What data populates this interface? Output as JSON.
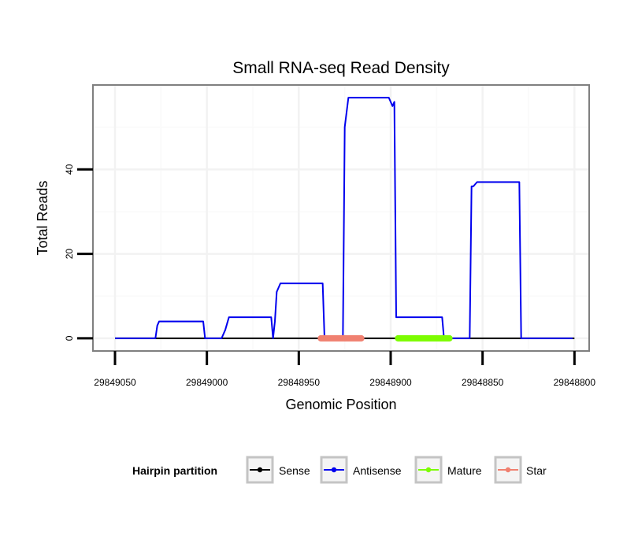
{
  "chart_data": {
    "type": "line",
    "title": "Small RNA-seq Read Density",
    "xlabel": "Genomic Position",
    "ylabel": "Total Reads",
    "x_reversed": true,
    "xlim": [
      29849062,
      29848792
    ],
    "ylim": [
      -3,
      60
    ],
    "x_ticks": [
      29849050,
      29849000,
      29848950,
      29848900,
      29848850,
      29848800
    ],
    "y_ticks": [
      0,
      20,
      40
    ],
    "grid": true,
    "legend": {
      "position": "bottom",
      "title": "Hairpin partition",
      "entries": [
        "Sense",
        "Antisense",
        "Mature",
        "Star"
      ]
    },
    "series": [
      {
        "name": "Antisense",
        "color": "#0000ee",
        "points": [
          [
            29849050,
            0
          ],
          [
            29849028,
            0
          ],
          [
            29849027,
            3
          ],
          [
            29849026,
            4
          ],
          [
            29849002,
            4
          ],
          [
            29849001,
            0
          ],
          [
            29848992,
            0
          ],
          [
            29848990,
            2
          ],
          [
            29848988,
            5
          ],
          [
            29848965,
            5
          ],
          [
            29848964,
            0
          ],
          [
            29848963,
            4
          ],
          [
            29848962,
            11
          ],
          [
            29848960,
            13
          ],
          [
            29848937,
            13
          ],
          [
            29848936,
            0
          ],
          [
            29848926,
            0
          ],
          [
            29848925,
            50
          ],
          [
            29848923,
            57
          ],
          [
            29848901,
            57
          ],
          [
            29848899,
            55
          ],
          [
            29848898,
            56
          ],
          [
            29848897,
            5
          ],
          [
            29848872,
            5
          ],
          [
            29848871,
            0
          ],
          [
            29848857,
            0
          ],
          [
            29848856,
            36
          ],
          [
            29848855,
            36
          ],
          [
            29848853,
            37
          ],
          [
            29848830,
            37
          ],
          [
            29848829,
            0
          ],
          [
            29848801,
            0
          ]
        ]
      },
      {
        "name": "Sense",
        "color": "#000000",
        "points": [
          [
            29849050,
            0
          ],
          [
            29848800,
            0
          ]
        ]
      },
      {
        "name": "Star",
        "color": "#f08070",
        "segments": [
          [
            29848938,
            29848916
          ]
        ]
      },
      {
        "name": "Mature",
        "color": "#7cfc00",
        "segments": [
          [
            29848896,
            29848868
          ]
        ]
      }
    ]
  }
}
